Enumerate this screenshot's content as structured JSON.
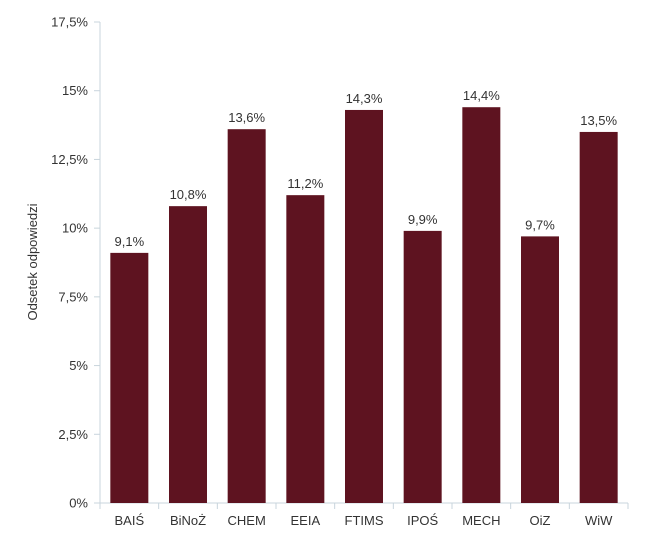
{
  "chart_data": {
    "type": "bar",
    "ylabel": "Odsetek odpowiedzi",
    "ylim": [
      0,
      17.5
    ],
    "yticks": [
      0,
      2.5,
      5,
      7.5,
      10,
      12.5,
      15,
      17.5
    ],
    "ytick_labels": [
      "0%",
      "2,5%",
      "5%",
      "7,5%",
      "10%",
      "12,5%",
      "15%",
      "17,5%"
    ],
    "categories": [
      "BAIŚ",
      "BiNoŻ",
      "CHEM",
      "EEIA",
      "FTIMS",
      "IPOŚ",
      "MECH",
      "OiZ",
      "WiW"
    ],
    "values": [
      9.1,
      10.8,
      13.6,
      11.2,
      14.3,
      9.9,
      14.4,
      9.7,
      13.5
    ],
    "value_labels": [
      "9,1%",
      "10,8%",
      "13,6%",
      "11,2%",
      "14,3%",
      "9,9%",
      "14,4%",
      "9,7%",
      "13,5%"
    ],
    "bar_color": "#5e1320",
    "axis_color": "#c8d4dc",
    "grid": false,
    "legend": "none"
  }
}
